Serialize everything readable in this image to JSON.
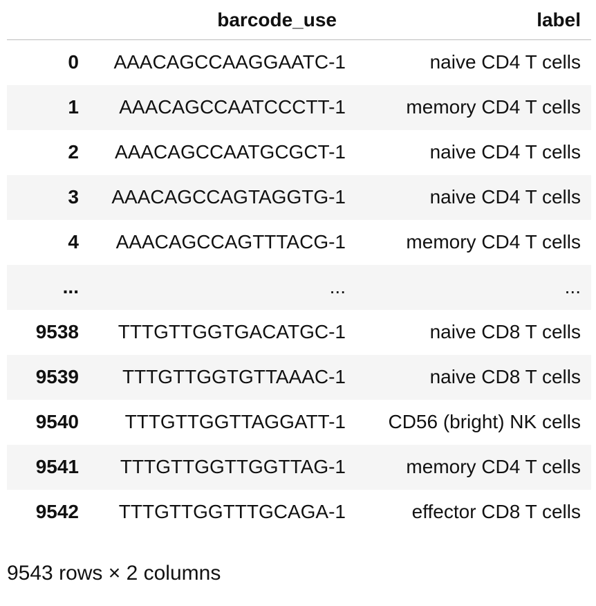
{
  "table": {
    "headers": {
      "index": "",
      "barcode": "barcode_use",
      "label": "label"
    },
    "rows": [
      {
        "index": "0",
        "barcode": "AAACAGCCAAGGAATC-1",
        "label": "naive CD4 T cells"
      },
      {
        "index": "1",
        "barcode": "AAACAGCCAATCCCTT-1",
        "label": "memory CD4 T cells"
      },
      {
        "index": "2",
        "barcode": "AAACAGCCAATGCGCT-1",
        "label": "naive CD4 T cells"
      },
      {
        "index": "3",
        "barcode": "AAACAGCCAGTAGGTG-1",
        "label": "naive CD4 T cells"
      },
      {
        "index": "4",
        "barcode": "AAACAGCCAGTTTACG-1",
        "label": "memory CD4 T cells"
      },
      {
        "index": "...",
        "barcode": "...",
        "label": "..."
      },
      {
        "index": "9538",
        "barcode": "TTTGTTGGTGACATGC-1",
        "label": "naive CD8 T cells"
      },
      {
        "index": "9539",
        "barcode": "TTTGTTGGTGTTAAAC-1",
        "label": "naive CD8 T cells"
      },
      {
        "index": "9540",
        "barcode": "TTTGTTGGTTAGGATT-1",
        "label": "CD56 (bright) NK cells"
      },
      {
        "index": "9541",
        "barcode": "TTTGTTGGTTGGTTAG-1",
        "label": "memory CD4 T cells"
      },
      {
        "index": "9542",
        "barcode": "TTTGTTGGTTTGCAGA-1",
        "label": "effector CD8 T cells"
      }
    ]
  },
  "footer": {
    "shape": "9543 rows × 2 columns"
  }
}
